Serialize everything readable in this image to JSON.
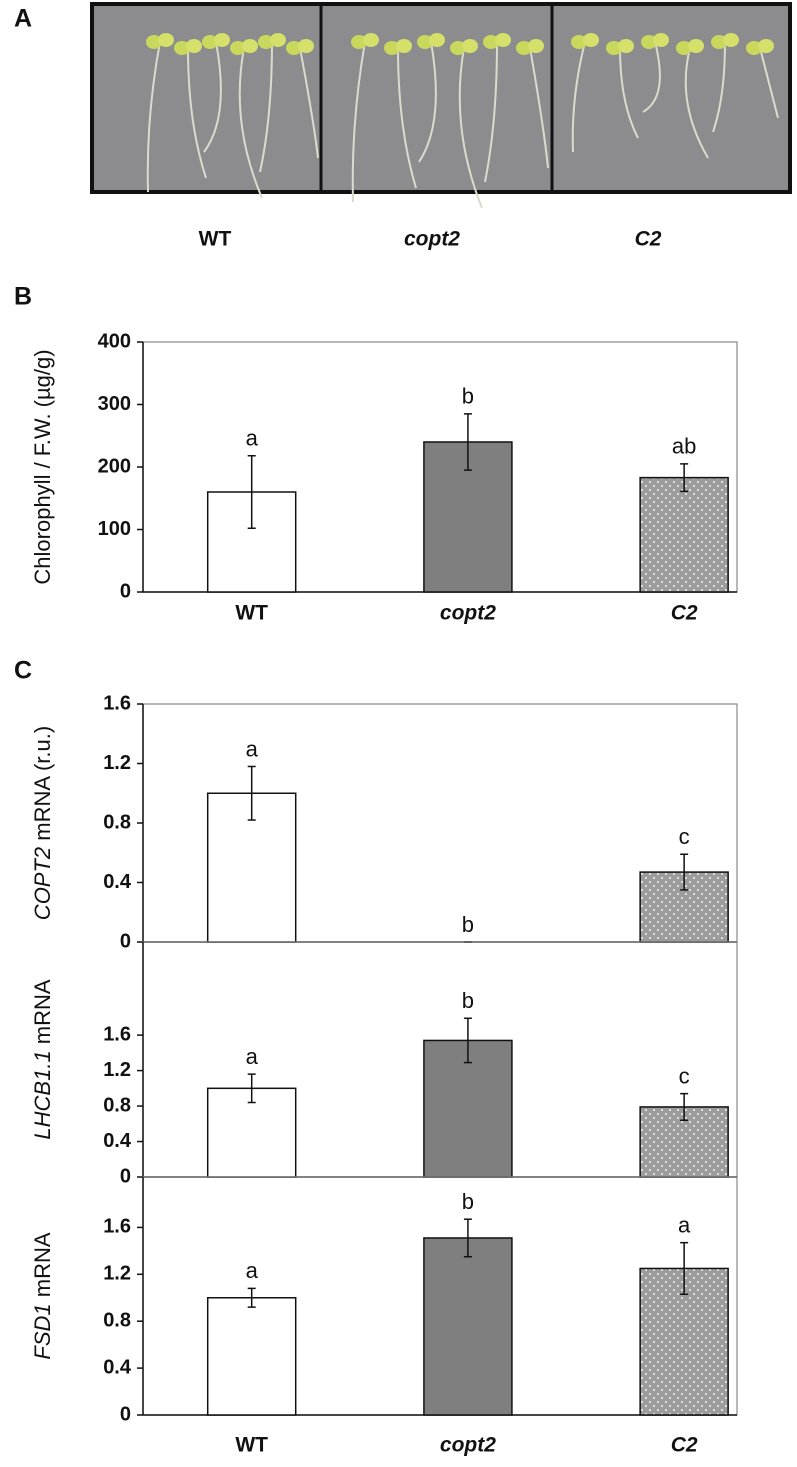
{
  "photo": {
    "panel": "A",
    "labels": [
      "WT",
      "copt2",
      "C2"
    ]
  },
  "chart_data": [
    {
      "type": "bar",
      "panel": "B",
      "ylabel": "Chlorophyll / F.W. (µg/g)",
      "categories": [
        "WT",
        "copt2",
        "C2"
      ],
      "colors": [
        "#ffffff",
        "#7f7f7f",
        "#9c9c9c"
      ],
      "patterns": [
        "none",
        "none",
        "dots"
      ],
      "values": [
        160,
        240,
        183
      ],
      "errors": [
        58,
        45,
        22
      ],
      "annotations": [
        "a",
        "b",
        "ab"
      ],
      "ylim": [
        0,
        400
      ],
      "yticks": [
        0,
        100,
        200,
        300,
        400
      ]
    },
    {
      "type": "bar",
      "panel": "C",
      "categories": [
        "WT",
        "copt2",
        "C2"
      ],
      "colors": [
        "#ffffff",
        "#7f7f7f",
        "#9c9c9c"
      ],
      "patterns": [
        "none",
        "none",
        "dots"
      ],
      "panels": [
        {
          "ylabel_italic": "COPT2",
          "ylabel": "mRNA  (r.u.)",
          "values": [
            1.0,
            0,
            0.47
          ],
          "errors": [
            0.18,
            0,
            0.12
          ],
          "annotations": [
            "a",
            "b",
            "c"
          ],
          "ylim": [
            0,
            1.6
          ],
          "yticks": [
            0,
            0.4,
            0.8,
            1.2,
            1.6
          ]
        },
        {
          "ylabel_italic": "LHCB1.1",
          "ylabel": "mRNA",
          "values": [
            1.0,
            1.54,
            0.79
          ],
          "errors": [
            0.16,
            0.25,
            0.15
          ],
          "annotations": [
            "a",
            "b",
            "c"
          ],
          "ylim": [
            0,
            2.65
          ],
          "yticks": [
            0,
            0.4,
            0.8,
            1.2,
            1.6
          ]
        },
        {
          "ylabel_italic": "FSD1",
          "ylabel": "mRNA",
          "values": [
            1.0,
            1.51,
            1.25
          ],
          "errors": [
            0.08,
            0.16,
            0.22
          ],
          "annotations": [
            "a",
            "b",
            "a"
          ],
          "ylim": [
            0,
            2.03
          ],
          "yticks": [
            0,
            0.4,
            0.8,
            1.2,
            1.6
          ]
        }
      ]
    }
  ]
}
